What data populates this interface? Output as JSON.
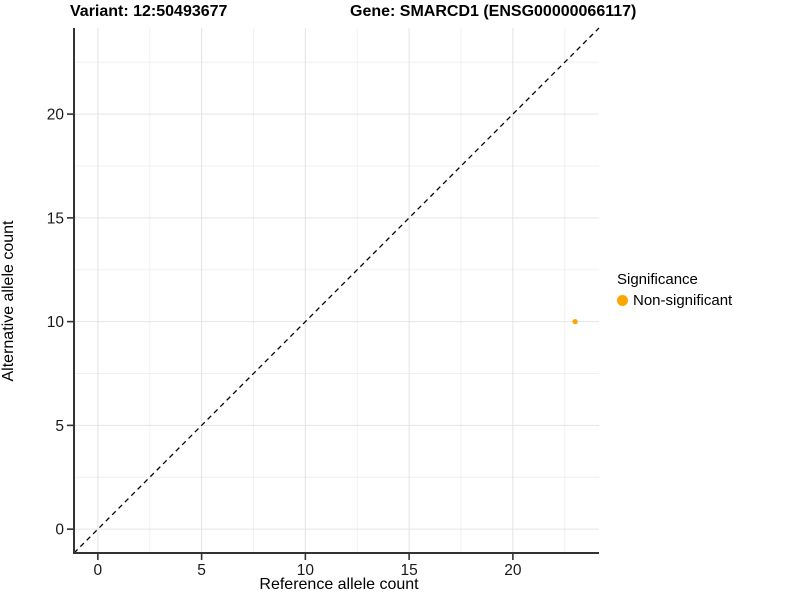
{
  "chart_data": {
    "type": "scatter",
    "title_left": "Variant: 12:50493677",
    "title_right": "Gene: SMARCD1 (ENSG00000066117)",
    "xlabel": "Reference allele count",
    "ylabel": "Alternative allele count",
    "xlim": [
      -1.15,
      24.15
    ],
    "ylim": [
      -1.15,
      24.15
    ],
    "x_major_ticks": [
      0,
      5,
      10,
      15,
      20
    ],
    "y_major_ticks": [
      0,
      5,
      10,
      15,
      20
    ],
    "x_minor_ticks": [
      2.5,
      7.5,
      12.5,
      17.5,
      22.5
    ],
    "y_minor_ticks": [
      2.5,
      7.5,
      12.5,
      17.5,
      22.5
    ],
    "grid": true,
    "points": [
      {
        "x": 23,
        "y": 10,
        "series": "Non-significant"
      }
    ],
    "reference_line": {
      "type": "identity",
      "slope": 1,
      "intercept": 0,
      "style": "dashed",
      "color": "#000000"
    },
    "legend": {
      "position": "right",
      "title": "Significance",
      "items": [
        {
          "label": "Non-significant",
          "color": "#FFA500"
        }
      ]
    },
    "colors": {
      "point": "#FFA500",
      "axis_line": "#333333",
      "tick_label": "#1a1a1a",
      "grid_major": "#e5e5e5",
      "grid_minor": "#f0f0f0",
      "background": "#ffffff"
    }
  }
}
